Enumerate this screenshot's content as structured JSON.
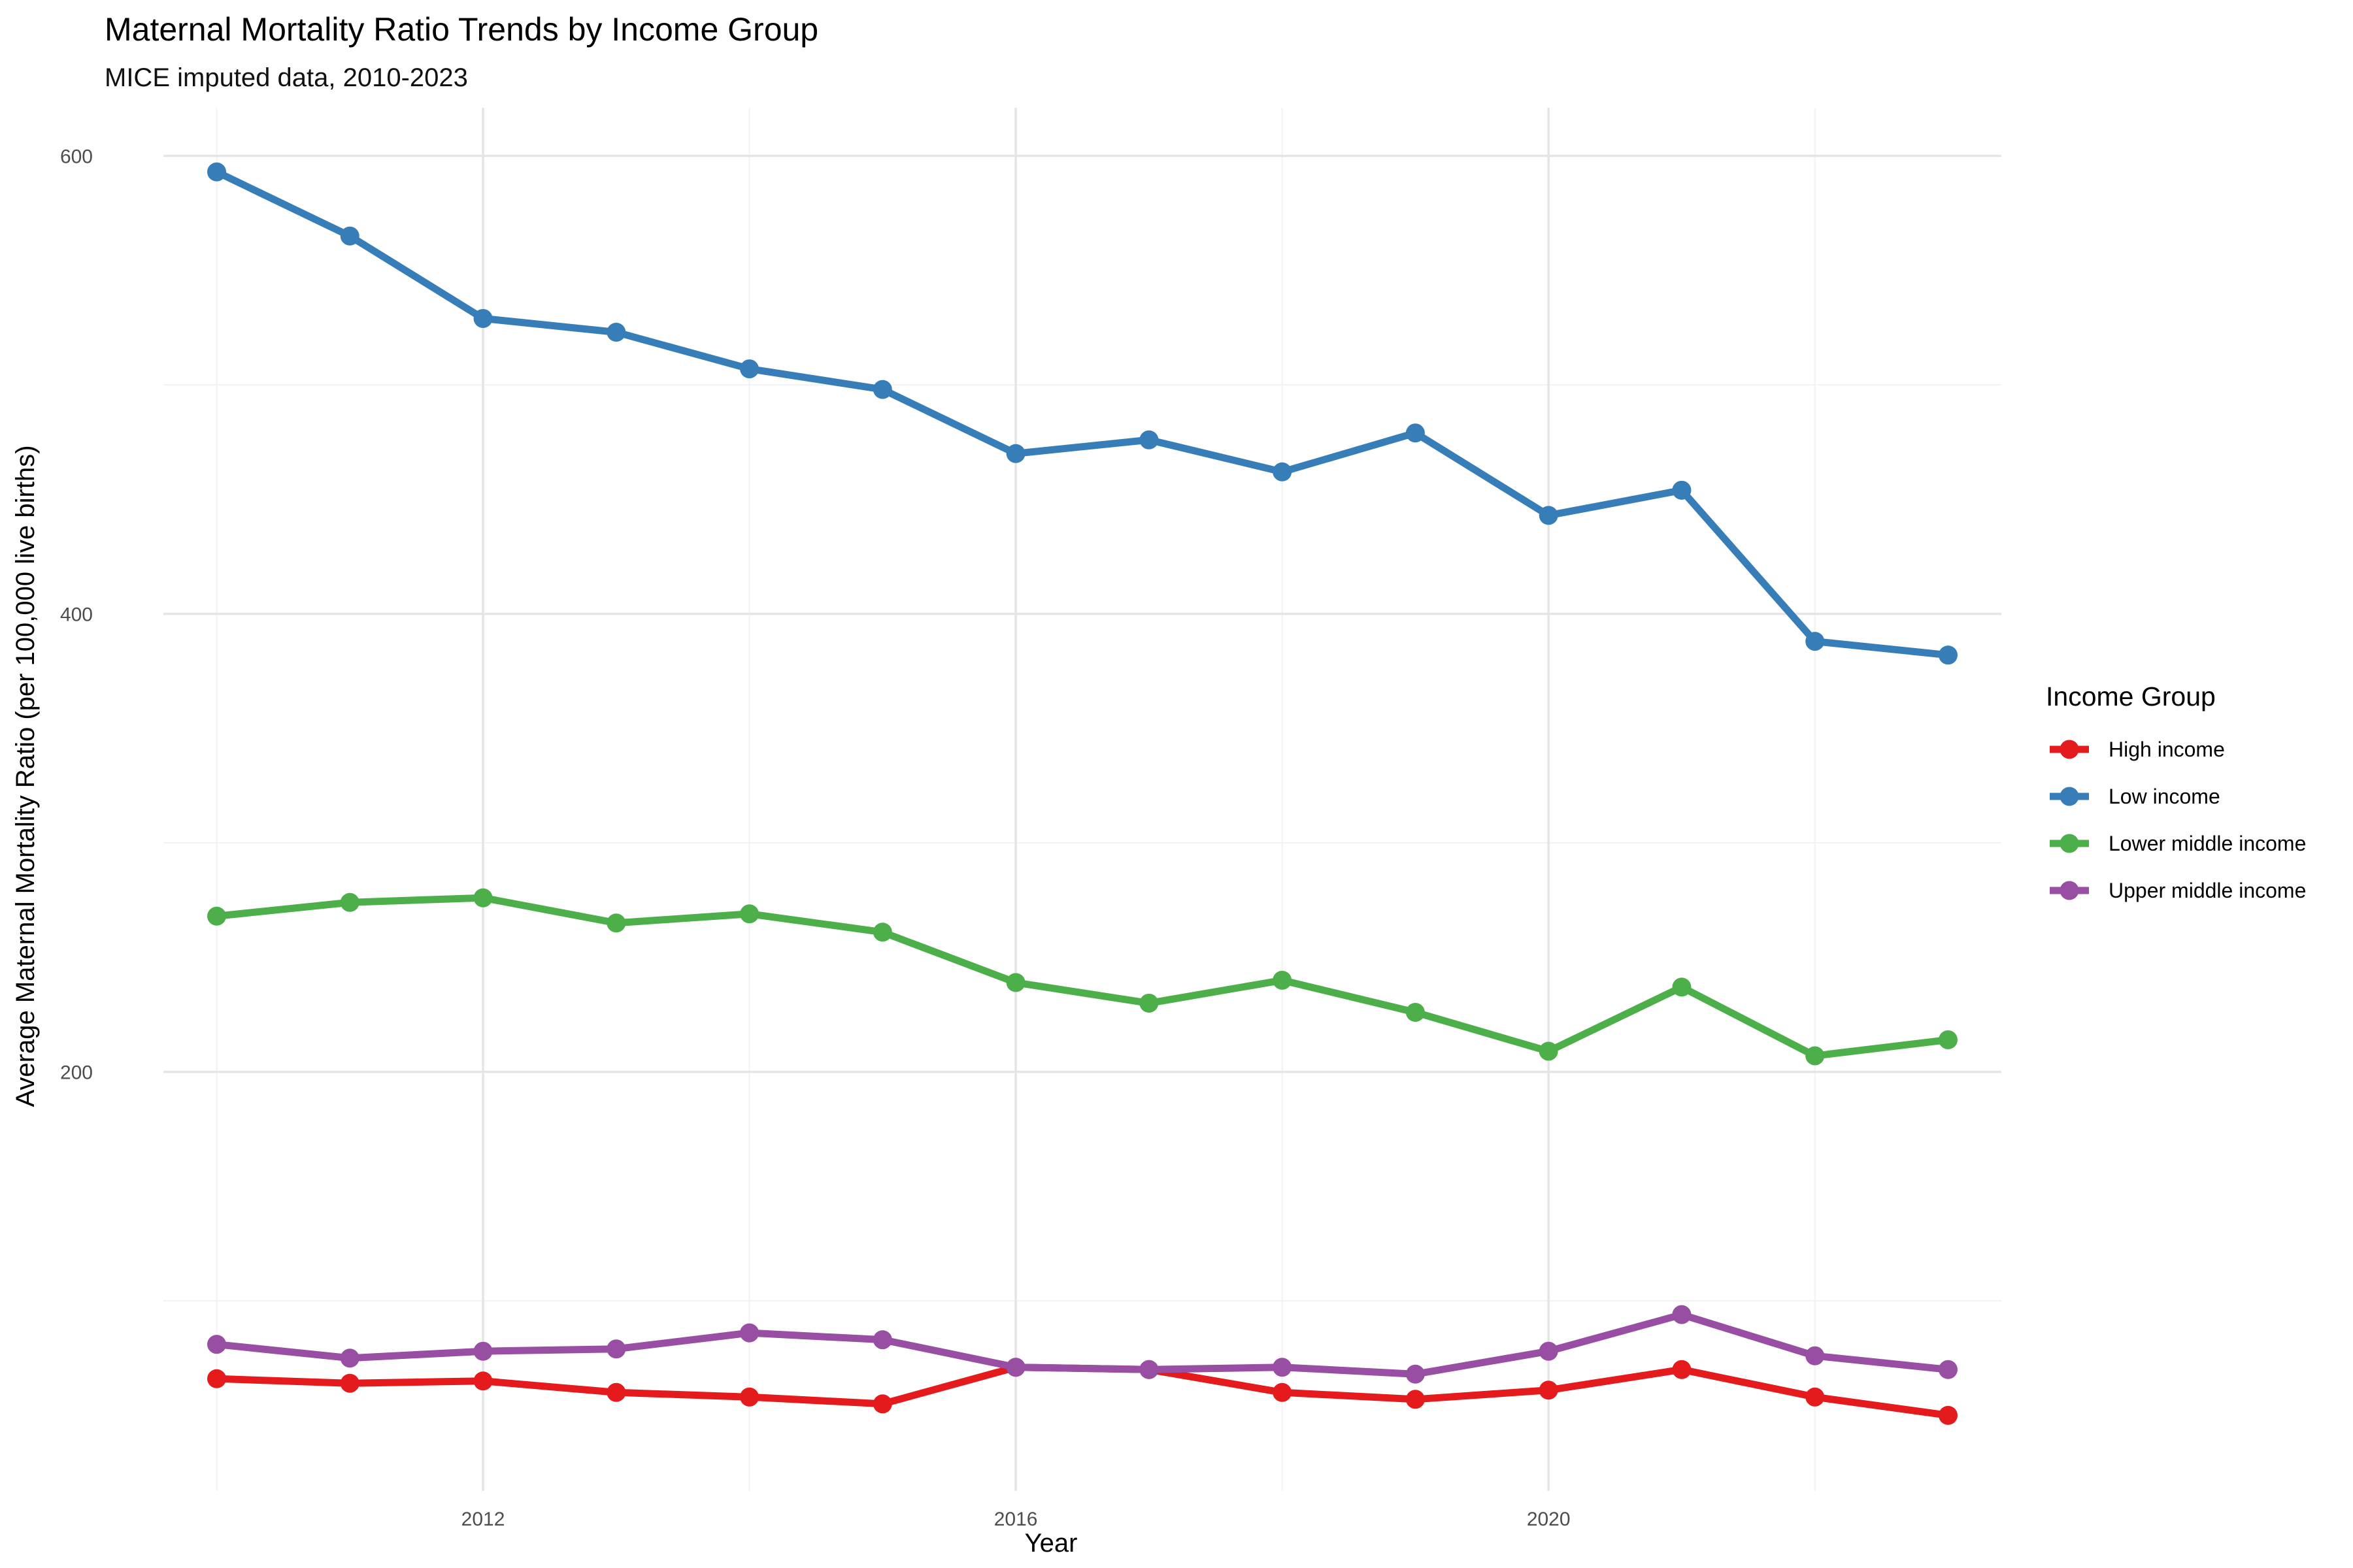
{
  "chart_data": {
    "type": "line",
    "title": "Maternal Mortality Ratio Trends by Income Group",
    "subtitle": "MICE imputed data, 2010-2023",
    "xlabel": "Year",
    "ylabel": "Average Maternal Mortality Ratio (per 100,000 live births)",
    "xlim": [
      2009.6,
      2023.4
    ],
    "ylim": [
      17,
      621
    ],
    "x_ticks": [
      2012,
      2016,
      2020
    ],
    "x_tick_labels": [
      "2012",
      "2016",
      "2020"
    ],
    "x_minor_gridlines": [
      2010,
      2014,
      2018,
      2022
    ],
    "y_ticks": [
      200,
      400,
      600
    ],
    "y_tick_labels": [
      "200",
      "400",
      "600"
    ],
    "y_minor_gridlines": [
      100,
      300,
      500
    ],
    "grid": true,
    "legend_title": "Income Group",
    "legend_position": "right",
    "x": [
      2010,
      2011,
      2012,
      2013,
      2014,
      2015,
      2016,
      2017,
      2018,
      2019,
      2020,
      2021,
      2022,
      2023
    ],
    "series": [
      {
        "name": "High income",
        "color": "#e41a1c",
        "values": [
          66,
          64,
          65,
          60,
          58,
          55,
          71,
          70,
          60,
          57,
          61,
          70,
          58,
          50
        ]
      },
      {
        "name": "Low income",
        "color": "#377eb8",
        "values": [
          593,
          565,
          529,
          523,
          507,
          498,
          470,
          476,
          462,
          479,
          443,
          454,
          388,
          382
        ]
      },
      {
        "name": "Lower middle income",
        "color": "#4daf4a",
        "values": [
          268,
          274,
          276,
          265,
          269,
          261,
          239,
          230,
          240,
          226,
          209,
          237,
          207,
          214
        ]
      },
      {
        "name": "Upper middle income",
        "color": "#984ea3",
        "values": [
          81,
          75,
          78,
          79,
          86,
          83,
          71,
          70,
          71,
          68,
          78,
          94,
          76,
          70
        ]
      }
    ]
  }
}
